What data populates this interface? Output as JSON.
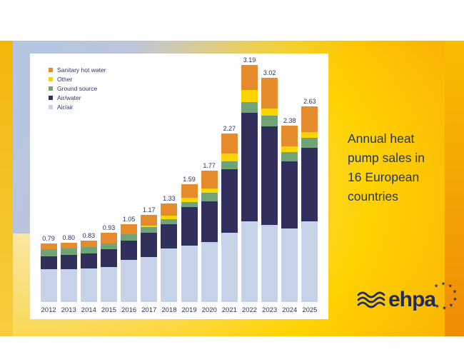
{
  "slide": {
    "title_lines": [
      "Annual heat",
      "pump sales in",
      "16 European",
      "countries"
    ]
  },
  "logo": {
    "text": "ehpa"
  },
  "colors": {
    "title_text": "#223668",
    "logo_navy": "#1f2b59",
    "label_text": "#253464",
    "left_strip": "#f3b70e",
    "right_strip": "#f29204",
    "blue_wash": "#b4c6e3",
    "card_background": "#ffffff"
  },
  "chart_data": {
    "type": "bar",
    "stacked": true,
    "title": "Annual heat pump sales in 16 European countries",
    "legend_position": "top-left",
    "y_axis": "hidden",
    "categories": [
      "2012",
      "2013",
      "2014",
      "2015",
      "2016",
      "2017",
      "2018",
      "2019",
      "2020",
      "2021",
      "2022",
      "2023",
      "2024",
      "2025"
    ],
    "totals_labels": [
      "0.79",
      "0.80",
      "0.83",
      "0.93",
      "1.05",
      "1.17",
      "1.33",
      "1.59",
      "1.77",
      "2.27",
      "3.19",
      "3.02",
      "2.38",
      "2.63"
    ],
    "series": [
      {
        "name": "Air/air",
        "color": "#c6d2e8",
        "values": [
          0.44,
          0.44,
          0.45,
          0.47,
          0.57,
          0.61,
          0.72,
          0.76,
          0.81,
          0.93,
          1.09,
          1.04,
          0.99,
          1.09
        ]
      },
      {
        "name": "Air/water",
        "color": "#312f5b",
        "values": [
          0.18,
          0.19,
          0.2,
          0.24,
          0.26,
          0.32,
          0.33,
          0.52,
          0.55,
          0.86,
          1.46,
          1.33,
          0.9,
          0.99
        ]
      },
      {
        "name": "Ground source",
        "color": "#70a476",
        "values": [
          0.09,
          0.09,
          0.09,
          0.08,
          0.08,
          0.08,
          0.07,
          0.07,
          0.11,
          0.11,
          0.14,
          0.14,
          0.13,
          0.13
        ]
      },
      {
        "name": "Other",
        "color": "#fcd303",
        "values": [
          0.0,
          0.0,
          0.0,
          0.0,
          0.0,
          0.02,
          0.04,
          0.05,
          0.06,
          0.1,
          0.17,
          0.1,
          0.08,
          0.08
        ]
      },
      {
        "name": "Sanitary hot water",
        "color": "#e58b2c",
        "values": [
          0.08,
          0.08,
          0.09,
          0.14,
          0.14,
          0.14,
          0.17,
          0.19,
          0.24,
          0.27,
          0.33,
          0.41,
          0.28,
          0.34
        ]
      }
    ]
  }
}
